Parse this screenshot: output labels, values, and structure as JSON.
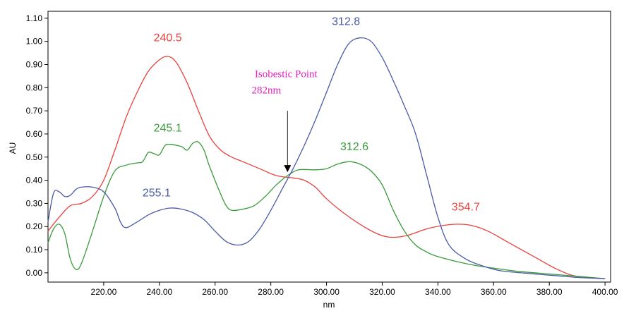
{
  "chart_data": {
    "type": "line",
    "title": "",
    "xlabel": "nm",
    "ylabel": "AU",
    "xlim": [
      200,
      402
    ],
    "ylim": [
      -0.04,
      1.13
    ],
    "grid": false,
    "x_ticks": [
      220,
      240,
      260,
      280,
      300,
      320,
      340,
      360,
      380,
      400
    ],
    "x_tick_labels": [
      "220.00",
      "240.00",
      "260.00",
      "280.00",
      "300.00",
      "320.00",
      "340.00",
      "360.00",
      "380.00",
      "400.00"
    ],
    "y_ticks": [
      0.0,
      0.1,
      0.2,
      0.3,
      0.4,
      0.5,
      0.6,
      0.7,
      0.8,
      0.9,
      1.0,
      1.1
    ],
    "y_tick_labels": [
      "0.00",
      "0.10",
      "0.20",
      "0.30",
      "0.40",
      "0.50",
      "0.60",
      "0.70",
      "0.80",
      "0.90",
      "1.00",
      "1.10"
    ],
    "series": [
      {
        "color": "#e8413c",
        "points": [
          [
            200,
            0.18
          ],
          [
            204,
            0.24
          ],
          [
            208,
            0.29
          ],
          [
            212,
            0.3
          ],
          [
            216,
            0.33
          ],
          [
            220,
            0.4
          ],
          [
            224,
            0.53
          ],
          [
            228,
            0.67
          ],
          [
            232,
            0.78
          ],
          [
            236,
            0.87
          ],
          [
            240,
            0.92
          ],
          [
            243,
            0.935
          ],
          [
            246,
            0.91
          ],
          [
            250,
            0.82
          ],
          [
            254,
            0.7
          ],
          [
            258,
            0.59
          ],
          [
            262,
            0.53
          ],
          [
            266,
            0.5
          ],
          [
            270,
            0.48
          ],
          [
            276,
            0.45
          ],
          [
            282,
            0.42
          ],
          [
            288,
            0.41
          ],
          [
            292,
            0.4
          ],
          [
            296,
            0.37
          ],
          [
            300,
            0.32
          ],
          [
            306,
            0.26
          ],
          [
            312,
            0.21
          ],
          [
            318,
            0.17
          ],
          [
            322,
            0.155
          ],
          [
            326,
            0.155
          ],
          [
            330,
            0.165
          ],
          [
            336,
            0.19
          ],
          [
            342,
            0.205
          ],
          [
            347,
            0.21
          ],
          [
            352,
            0.205
          ],
          [
            358,
            0.18
          ],
          [
            364,
            0.14
          ],
          [
            370,
            0.1
          ],
          [
            376,
            0.06
          ],
          [
            382,
            0.02
          ],
          [
            388,
            -0.01
          ],
          [
            394,
            -0.02
          ],
          [
            400,
            -0.025
          ]
        ]
      },
      {
        "color": "#3a9a3a",
        "points": [
          [
            200,
            0.13
          ],
          [
            202,
            0.19
          ],
          [
            204,
            0.21
          ],
          [
            206,
            0.17
          ],
          [
            208,
            0.06
          ],
          [
            210,
            0.015
          ],
          [
            212,
            0.04
          ],
          [
            216,
            0.18
          ],
          [
            220,
            0.33
          ],
          [
            224,
            0.44
          ],
          [
            228,
            0.465
          ],
          [
            232,
            0.475
          ],
          [
            234,
            0.48
          ],
          [
            236,
            0.52
          ],
          [
            238,
            0.515
          ],
          [
            240,
            0.51
          ],
          [
            242,
            0.55
          ],
          [
            244,
            0.555
          ],
          [
            248,
            0.545
          ],
          [
            250,
            0.53
          ],
          [
            252,
            0.56
          ],
          [
            254,
            0.565
          ],
          [
            256,
            0.53
          ],
          [
            258,
            0.46
          ],
          [
            262,
            0.34
          ],
          [
            264,
            0.29
          ],
          [
            266,
            0.27
          ],
          [
            270,
            0.275
          ],
          [
            274,
            0.29
          ],
          [
            278,
            0.33
          ],
          [
            282,
            0.38
          ],
          [
            286,
            0.42
          ],
          [
            290,
            0.445
          ],
          [
            296,
            0.445
          ],
          [
            300,
            0.45
          ],
          [
            304,
            0.47
          ],
          [
            308,
            0.48
          ],
          [
            312,
            0.47
          ],
          [
            316,
            0.44
          ],
          [
            320,
            0.38
          ],
          [
            324,
            0.27
          ],
          [
            328,
            0.18
          ],
          [
            332,
            0.12
          ],
          [
            336,
            0.09
          ],
          [
            340,
            0.07
          ],
          [
            350,
            0.04
          ],
          [
            360,
            0.02
          ],
          [
            370,
            0.005
          ],
          [
            380,
            -0.005
          ],
          [
            390,
            -0.015
          ],
          [
            400,
            -0.025
          ]
        ]
      },
      {
        "color": "#4a5aa8",
        "points": [
          [
            200,
            0.22
          ],
          [
            202,
            0.345
          ],
          [
            204,
            0.35
          ],
          [
            206,
            0.33
          ],
          [
            208,
            0.335
          ],
          [
            210,
            0.36
          ],
          [
            212,
            0.37
          ],
          [
            216,
            0.37
          ],
          [
            220,
            0.35
          ],
          [
            224,
            0.28
          ],
          [
            226,
            0.22
          ],
          [
            228,
            0.195
          ],
          [
            232,
            0.22
          ],
          [
            236,
            0.25
          ],
          [
            240,
            0.27
          ],
          [
            244,
            0.28
          ],
          [
            248,
            0.275
          ],
          [
            252,
            0.26
          ],
          [
            256,
            0.23
          ],
          [
            260,
            0.18
          ],
          [
            264,
            0.135
          ],
          [
            268,
            0.12
          ],
          [
            272,
            0.135
          ],
          [
            276,
            0.19
          ],
          [
            280,
            0.27
          ],
          [
            284,
            0.36
          ],
          [
            288,
            0.45
          ],
          [
            292,
            0.55
          ],
          [
            296,
            0.66
          ],
          [
            300,
            0.78
          ],
          [
            304,
            0.9
          ],
          [
            308,
            0.99
          ],
          [
            312,
            1.015
          ],
          [
            316,
            1.0
          ],
          [
            320,
            0.93
          ],
          [
            324,
            0.83
          ],
          [
            328,
            0.72
          ],
          [
            332,
            0.6
          ],
          [
            336,
            0.42
          ],
          [
            340,
            0.24
          ],
          [
            344,
            0.12
          ],
          [
            350,
            0.06
          ],
          [
            356,
            0.03
          ],
          [
            362,
            0.01
          ],
          [
            370,
            0.0
          ],
          [
            380,
            -0.01
          ],
          [
            390,
            -0.02
          ],
          [
            400,
            -0.025
          ]
        ]
      }
    ],
    "annotations": [
      {
        "text": "240.5",
        "x": 243,
        "y": 1.0,
        "color": "#e8413c"
      },
      {
        "text": "245.1",
        "x": 243,
        "y": 0.61,
        "color": "#3a9a3a"
      },
      {
        "text": "255.1",
        "x": 239,
        "y": 0.33,
        "color": "#4a5aa8"
      },
      {
        "text": "312.8",
        "x": 307,
        "y": 1.07,
        "color": "#4a5aa8"
      },
      {
        "text": "312.6",
        "x": 310,
        "y": 0.53,
        "color": "#3a9a3a"
      },
      {
        "text": "354.7",
        "x": 350,
        "y": 0.27,
        "color": "#e8413c"
      }
    ],
    "isobestic": {
      "line1": "Isobestic Point",
      "line2": "282nm",
      "arrow_x": 286,
      "arrow_y": 0.435,
      "arrow_from_y": 0.7
    }
  }
}
